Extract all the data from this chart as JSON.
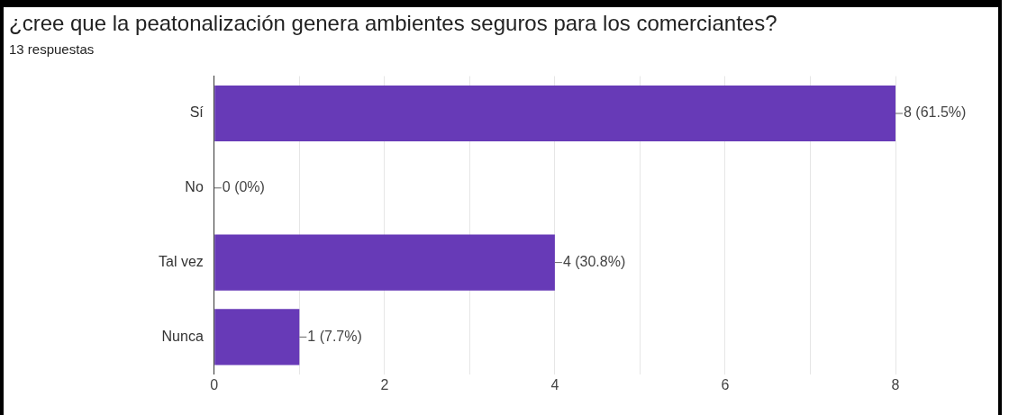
{
  "chart_data": {
    "type": "bar",
    "orientation": "horizontal",
    "title": "¿cree que la peatonalización genera ambientes seguros para los comerciantes?",
    "subtitle": "13 respuestas",
    "categories": [
      "Sí",
      "No",
      "Tal vez",
      "Nunca"
    ],
    "values": [
      8,
      0,
      4,
      1
    ],
    "value_labels": [
      "8 (61.5%)",
      "0 (0%)",
      "4 (30.8%)",
      "1 (7.7%)"
    ],
    "color": "#673ab7",
    "xlim": [
      0,
      8
    ],
    "xticks": [
      0,
      {
        "value": 1,
        "label": null
      },
      2,
      {
        "value": 3,
        "label": null
      },
      4,
      {
        "value": 5,
        "label": null
      },
      6,
      {
        "value": 7,
        "label": null
      },
      8
    ],
    "grid": "x"
  }
}
